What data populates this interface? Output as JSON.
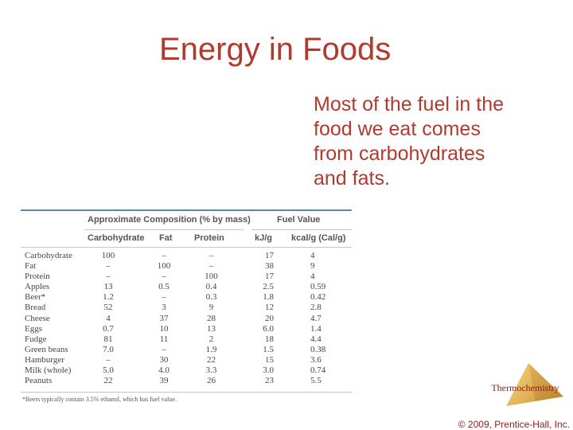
{
  "slide": {
    "title": "Energy in Foods",
    "bullet_lines": [
      "Most of the fuel in the",
      "food we eat comes",
      "from carbohydrates",
      "and fats."
    ]
  },
  "table": {
    "group_headers": {
      "composition": "Approximate Composition (% by mass)",
      "fuel": "Fuel Value"
    },
    "columns": [
      "Carbohydrate",
      "Fat",
      "Protein",
      "kJ/g",
      "kcal/g (Cal/g)"
    ],
    "rows": [
      [
        "Carbohydrate",
        "100",
        "–",
        "–",
        "17",
        "4"
      ],
      [
        "Fat",
        "–",
        "100",
        "–",
        "38",
        "9"
      ],
      [
        "Protein",
        "–",
        "–",
        "100",
        "17",
        "4"
      ],
      [
        "Apples",
        "13",
        "0.5",
        "0.4",
        "2.5",
        "0.59"
      ],
      [
        "Beer*",
        "1.2",
        "–",
        "0.3",
        "1.8",
        "0.42"
      ],
      [
        "Bread",
        "52",
        "3",
        "9",
        "12",
        "2.8"
      ],
      [
        "Cheese",
        "4",
        "37",
        "28",
        "20",
        "4.7"
      ],
      [
        "Eggs",
        "0.7",
        "10",
        "13",
        "6.0",
        "1.4"
      ],
      [
        "Fudge",
        "81",
        "11",
        "2",
        "18",
        "4.4"
      ],
      [
        "Green beans",
        "7.0",
        "–",
        "1.9",
        "1.5",
        "0.38"
      ],
      [
        "Hamburger",
        "–",
        "30",
        "22",
        "15",
        "3.6"
      ],
      [
        "Milk (whole)",
        "5.0",
        "4.0",
        "3.3",
        "3.0",
        "0.74"
      ],
      [
        "Peanuts",
        "22",
        "39",
        "26",
        "23",
        "5.5"
      ]
    ],
    "footnote": "*Beers typically contain 3.5% ethanol, which has fuel value."
  },
  "footer": {
    "logo_label": "Thermochemistry",
    "copyright": "© 2009, Prentice-Hall, Inc."
  },
  "colors": {
    "title": "#b03a2e",
    "table_rule": "#5a8fa3",
    "footer_text": "#8e1b1b"
  }
}
